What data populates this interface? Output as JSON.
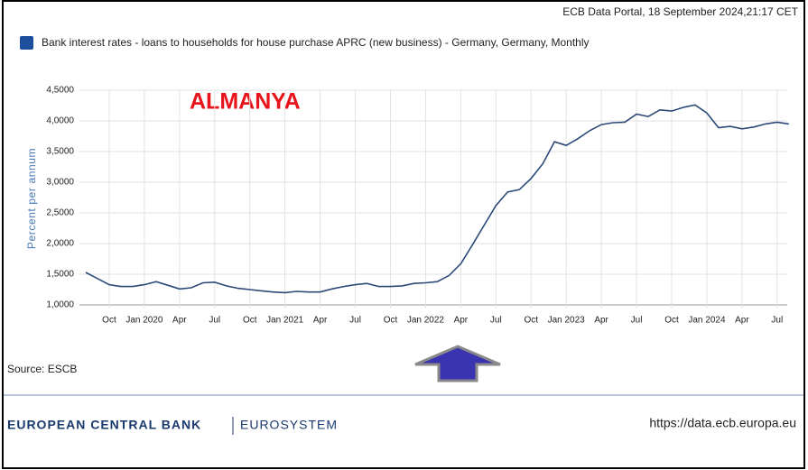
{
  "header": "ECB Data Portal, 18 September 2024,21:17 CET",
  "chart_data": {
    "type": "line",
    "annotation": "ALMANYA",
    "ylabel": "Percent per annum",
    "categories": [
      null,
      null,
      "Oct",
      null,
      null,
      "Jan 2020",
      null,
      null,
      "Apr",
      null,
      null,
      "Jul",
      null,
      null,
      "Oct",
      null,
      null,
      "Jan 2021",
      null,
      null,
      "Apr",
      null,
      null,
      "Jul",
      null,
      null,
      "Oct",
      null,
      null,
      "Jan 2022",
      null,
      null,
      "Apr",
      null,
      null,
      "Jul",
      null,
      null,
      "Oct",
      null,
      null,
      "Jan 2023",
      null,
      null,
      "Apr",
      null,
      null,
      "Jul",
      null,
      null,
      "Oct",
      null,
      null,
      "Jan 2024",
      null,
      null,
      "Apr",
      null,
      null,
      "Jul",
      null
    ],
    "series": [
      {
        "name": "Bank interest rates - loans to households for house purchase APRC (new business) - Germany, Germany, Monthly",
        "color": "#2b4a78",
        "values": [
          1.53,
          1.43,
          1.33,
          1.3,
          1.3,
          1.33,
          1.38,
          1.32,
          1.26,
          1.28,
          1.36,
          1.37,
          1.31,
          1.27,
          1.25,
          1.23,
          1.21,
          1.2,
          1.22,
          1.21,
          1.21,
          1.26,
          1.3,
          1.33,
          1.35,
          1.3,
          1.3,
          1.31,
          1.35,
          1.36,
          1.38,
          1.48,
          1.67,
          1.98,
          2.3,
          2.62,
          2.84,
          2.88,
          3.06,
          3.3,
          3.66,
          3.6,
          3.71,
          3.84,
          3.94,
          3.97,
          3.98,
          4.11,
          4.07,
          4.18,
          4.16,
          4.22,
          4.26,
          4.13,
          3.89,
          3.91,
          3.87,
          3.9,
          3.95,
          3.98,
          3.95
        ]
      }
    ],
    "legend_color": "#1d4f9e",
    "ylim": [
      1.0,
      4.5
    ],
    "yticks": [
      {
        "value": 1.0,
        "label": "1,0000"
      },
      {
        "value": 1.5,
        "label": "1,5000"
      },
      {
        "value": 2.0,
        "label": "2,0000"
      },
      {
        "value": 2.5,
        "label": "2,5000"
      },
      {
        "value": 3.0,
        "label": "3,0000"
      },
      {
        "value": 3.5,
        "label": "3,5000"
      },
      {
        "value": 4.0,
        "label": "4,0000"
      },
      {
        "value": 4.5,
        "label": "4,5000"
      }
    ],
    "grid": true
  },
  "source": "Source: ESCB",
  "footer": {
    "bank": "EUROPEAN CENTRAL BANK",
    "system": "EUROSYSTEM",
    "url": "https://data.ecb.europa.eu"
  }
}
